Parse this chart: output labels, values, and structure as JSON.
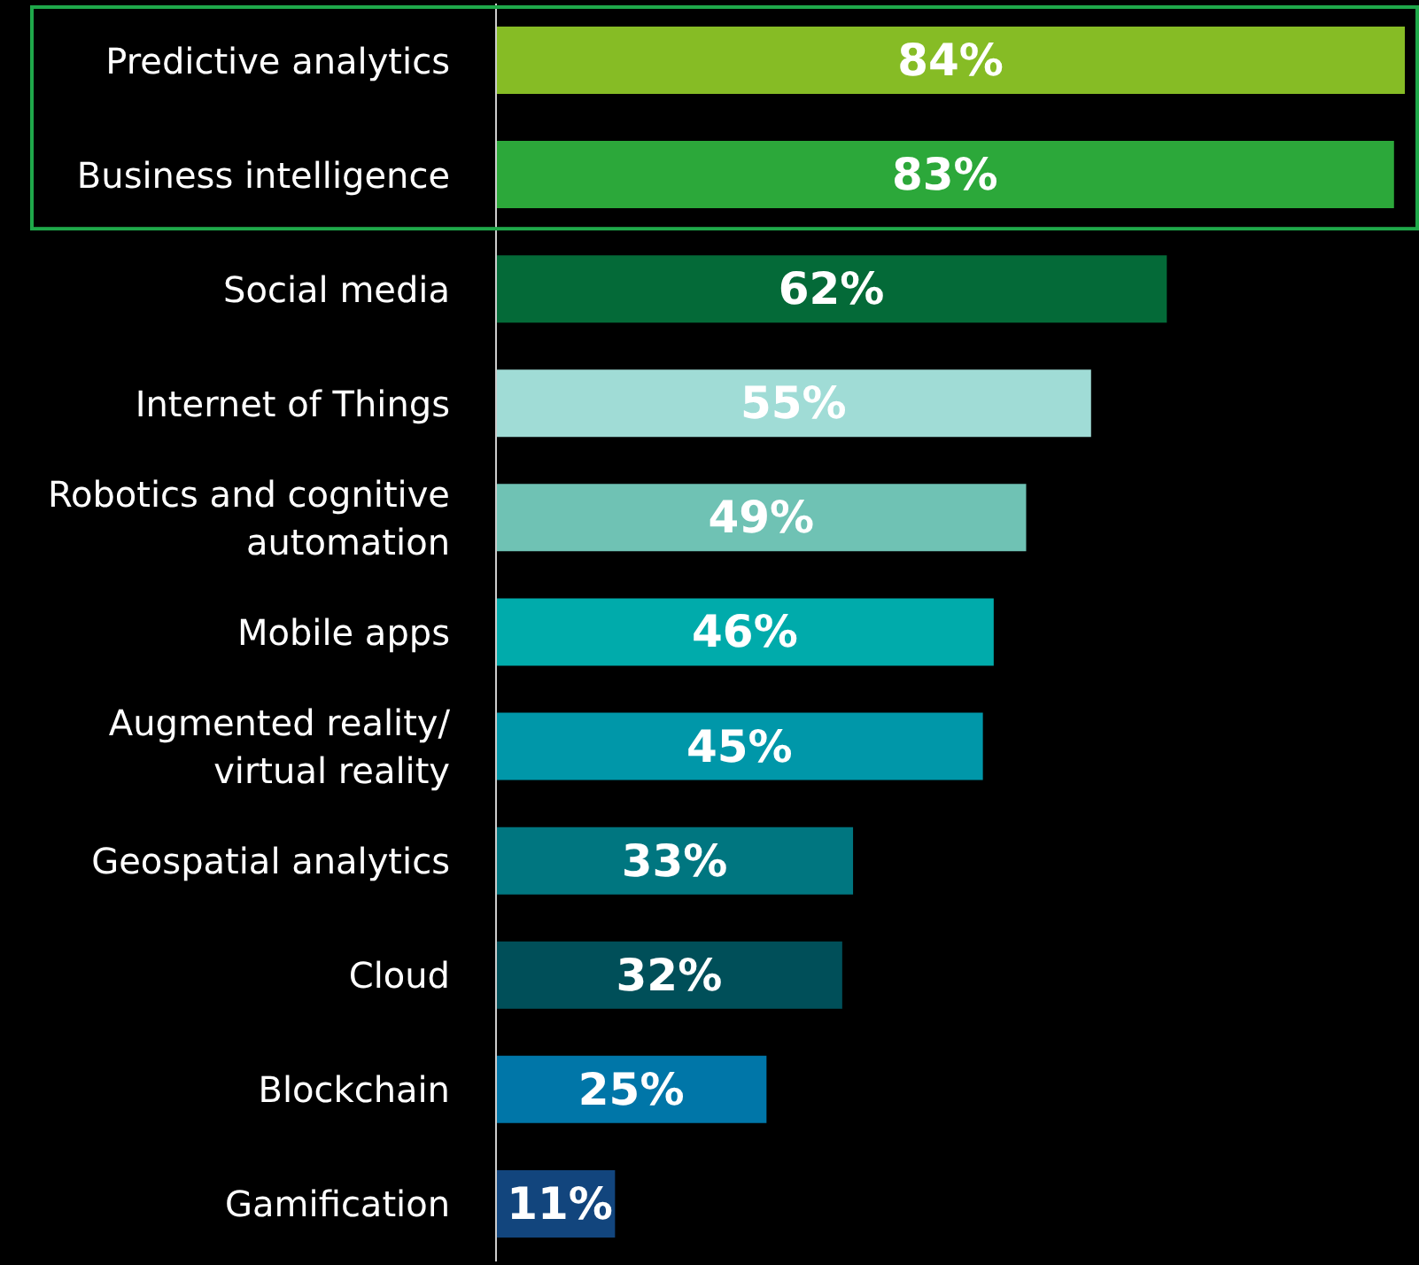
{
  "chart_data": {
    "type": "bar",
    "orientation": "horizontal",
    "categories": [
      "Predictive analytics",
      "Business intelligence",
      "Social media",
      "Internet of Things",
      "Robotics and cognitive automation",
      "Mobile apps",
      "Augmented reality/ virtual reality",
      "Geospatial analytics",
      "Cloud",
      "Blockchain",
      "Gamification"
    ],
    "values": [
      84,
      83,
      62,
      55,
      49,
      46,
      45,
      33,
      32,
      25,
      11
    ],
    "colors": [
      "#86bc25",
      "#2ca83a",
      "#046a38",
      "#a0dcd6",
      "#6fc2b4",
      "#00abab",
      "#0097a9",
      "#007680",
      "#004f59",
      "#0076a8",
      "#12457d"
    ],
    "value_labels": [
      "84%",
      "83%",
      "62%",
      "55%",
      "49%",
      "46%",
      "45%",
      "33%",
      "32%",
      "25%",
      "11%"
    ],
    "tick_labels": "y"
  }
}
